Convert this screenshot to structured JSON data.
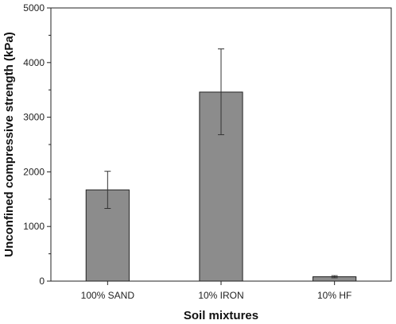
{
  "chart_data": {
    "type": "bar",
    "title": "",
    "xlabel": "Soil mixtures",
    "ylabel": "Unconfined compressive strength (kPa)",
    "categories": [
      "100% SAND",
      "10% IRON",
      "10% HF"
    ],
    "values": [
      1670,
      3460,
      80
    ],
    "error_high": [
      2010,
      4250,
      100
    ],
    "error_low": [
      1330,
      2680,
      60
    ],
    "ylim": [
      0,
      5000
    ],
    "yticks": [
      "0",
      "1000",
      "2000",
      "3000",
      "4000",
      "5000"
    ],
    "grid": false,
    "legend": "none",
    "bar_color": "#8c8c8c",
    "bar_edge_color": "#222222"
  }
}
